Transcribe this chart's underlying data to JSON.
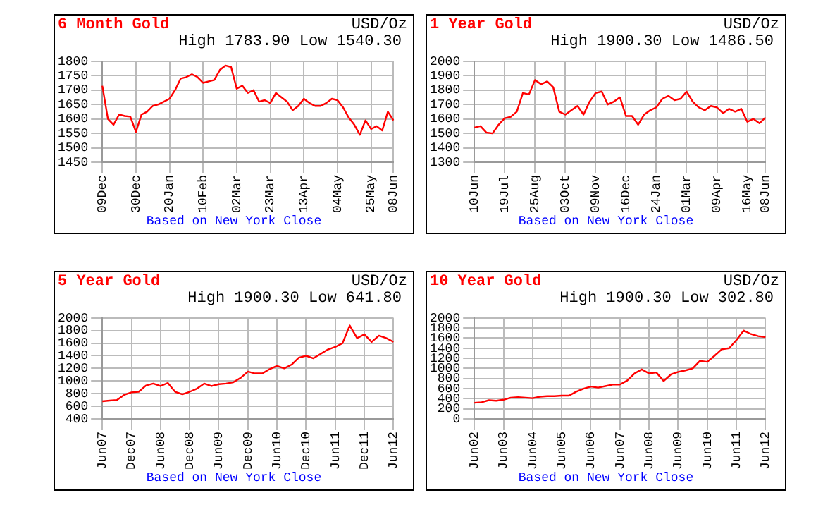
{
  "chart_data": [
    {
      "type": "line",
      "title": "6 Month Gold",
      "subtitle": "High 1783.90 Low 1540.30",
      "annotations": [
        "USD/Oz",
        "Based on New York Close"
      ],
      "categories": [
        "09Dec",
        null,
        null,
        null,
        null,
        null,
        "30Dec",
        null,
        null,
        null,
        null,
        null,
        "20Jan",
        null,
        null,
        null,
        null,
        null,
        "10Feb",
        null,
        null,
        null,
        null,
        null,
        "02Mar",
        null,
        null,
        null,
        null,
        null,
        "23Mar",
        null,
        null,
        null,
        null,
        null,
        "13Apr",
        null,
        null,
        null,
        null,
        null,
        "04May",
        null,
        null,
        null,
        null,
        null,
        "25May",
        null,
        null,
        null,
        "08Jun"
      ],
      "series": [
        {
          "color": "#ff0000",
          "values": [
            1715,
            1600,
            1580,
            1615,
            1610,
            1608,
            1555,
            1615,
            1625,
            1645,
            1650,
            1660,
            1670,
            1700,
            1740,
            1745,
            1755,
            1745,
            1725,
            1730,
            1735,
            1770,
            1785,
            1780,
            1705,
            1715,
            1690,
            1700,
            1660,
            1665,
            1655,
            1690,
            1675,
            1660,
            1630,
            1645,
            1670,
            1655,
            1645,
            1645,
            1655,
            1670,
            1665,
            1640,
            1605,
            1580,
            1545,
            1595,
            1565,
            1575,
            1560,
            1625,
            1595
          ]
        }
      ],
      "ylim": [
        1450,
        1800
      ],
      "yticks": [
        1450,
        1500,
        1550,
        1600,
        1650,
        1700,
        1750,
        1800
      ],
      "grid": true,
      "marker": "none"
    },
    {
      "type": "line",
      "title": "1 Year Gold",
      "subtitle": "High 1900.30 Low 1486.50",
      "annotations": [
        "USD/Oz",
        "Based on New York Close"
      ],
      "categories": [
        "10Jun",
        null,
        null,
        null,
        null,
        "19Jul",
        null,
        null,
        null,
        null,
        "25Aug",
        null,
        null,
        null,
        null,
        "03Oct",
        null,
        null,
        null,
        null,
        "09Nov",
        null,
        null,
        null,
        null,
        "16Dec",
        null,
        null,
        null,
        null,
        "24Jan",
        null,
        null,
        null,
        null,
        "01Mar",
        null,
        null,
        null,
        null,
        "09Apr",
        null,
        null,
        null,
        null,
        "16May",
        null,
        null,
        "08Jun"
      ],
      "series": [
        {
          "color": "#ff0000",
          "values": [
            1540,
            1550,
            1505,
            1500,
            1560,
            1605,
            1615,
            1650,
            1780,
            1770,
            1870,
            1840,
            1860,
            1820,
            1650,
            1630,
            1660,
            1690,
            1630,
            1720,
            1780,
            1790,
            1700,
            1720,
            1750,
            1620,
            1620,
            1560,
            1630,
            1660,
            1680,
            1740,
            1760,
            1730,
            1740,
            1790,
            1720,
            1680,
            1660,
            1690,
            1680,
            1640,
            1670,
            1650,
            1670,
            1580,
            1600,
            1570,
            1610
          ]
        }
      ],
      "ylim": [
        1300,
        2000
      ],
      "yticks": [
        1300,
        1400,
        1500,
        1600,
        1700,
        1800,
        1900,
        2000
      ],
      "grid": true,
      "marker": "none"
    },
    {
      "type": "line",
      "title": "5 Year Gold",
      "subtitle": "High 1900.30 Low 641.80",
      "annotations": [
        "USD/Oz",
        "Based on New York Close"
      ],
      "categories": [
        "Jun07",
        null,
        null,
        null,
        "Dec07",
        null,
        null,
        null,
        "Jun08",
        null,
        null,
        null,
        "Dec08",
        null,
        null,
        null,
        "Jun09",
        null,
        null,
        null,
        "Dec09",
        null,
        null,
        null,
        "Jun10",
        null,
        null,
        null,
        "Dec10",
        null,
        null,
        null,
        "Jun11",
        null,
        null,
        null,
        "Dec11",
        null,
        null,
        null,
        "Jun12"
      ],
      "series": [
        {
          "color": "#ff0000",
          "values": [
            680,
            690,
            700,
            780,
            820,
            830,
            930,
            960,
            920,
            970,
            830,
            790,
            830,
            880,
            960,
            920,
            950,
            960,
            980,
            1050,
            1150,
            1120,
            1120,
            1190,
            1240,
            1200,
            1260,
            1370,
            1400,
            1360,
            1430,
            1500,
            1540,
            1600,
            1880,
            1680,
            1740,
            1620,
            1720,
            1680,
            1620
          ]
        }
      ],
      "ylim": [
        400,
        2000
      ],
      "yticks": [
        400,
        600,
        800,
        1000,
        1200,
        1400,
        1600,
        1800,
        2000
      ],
      "grid": true,
      "marker": "none"
    },
    {
      "type": "line",
      "title": "10 Year Gold",
      "subtitle": "High 1900.30 Low 302.80",
      "annotations": [
        "USD/Oz",
        "Based on New York Close"
      ],
      "categories": [
        "Jun02",
        null,
        null,
        null,
        "Jun03",
        null,
        null,
        null,
        "Jun04",
        null,
        null,
        null,
        "Jun05",
        null,
        null,
        null,
        "Jun06",
        null,
        null,
        null,
        "Jun07",
        null,
        null,
        null,
        "Jun08",
        null,
        null,
        null,
        "Jun09",
        null,
        null,
        null,
        "Jun10",
        null,
        null,
        null,
        "Jun11",
        null,
        null,
        null,
        "Jun12"
      ],
      "series": [
        {
          "color": "#ff0000",
          "values": [
            320,
            330,
            370,
            360,
            380,
            420,
            430,
            420,
            410,
            440,
            450,
            450,
            460,
            460,
            540,
            600,
            640,
            620,
            650,
            680,
            680,
            760,
            900,
            980,
            900,
            920,
            750,
            880,
            930,
            960,
            1000,
            1150,
            1130,
            1250,
            1380,
            1400,
            1560,
            1750,
            1680,
            1640,
            1620
          ]
        }
      ],
      "ylim": [
        0,
        2000
      ],
      "yticks": [
        0,
        200,
        400,
        600,
        800,
        1000,
        1200,
        1400,
        1600,
        1800,
        2000
      ],
      "grid": true,
      "marker": "none"
    }
  ]
}
